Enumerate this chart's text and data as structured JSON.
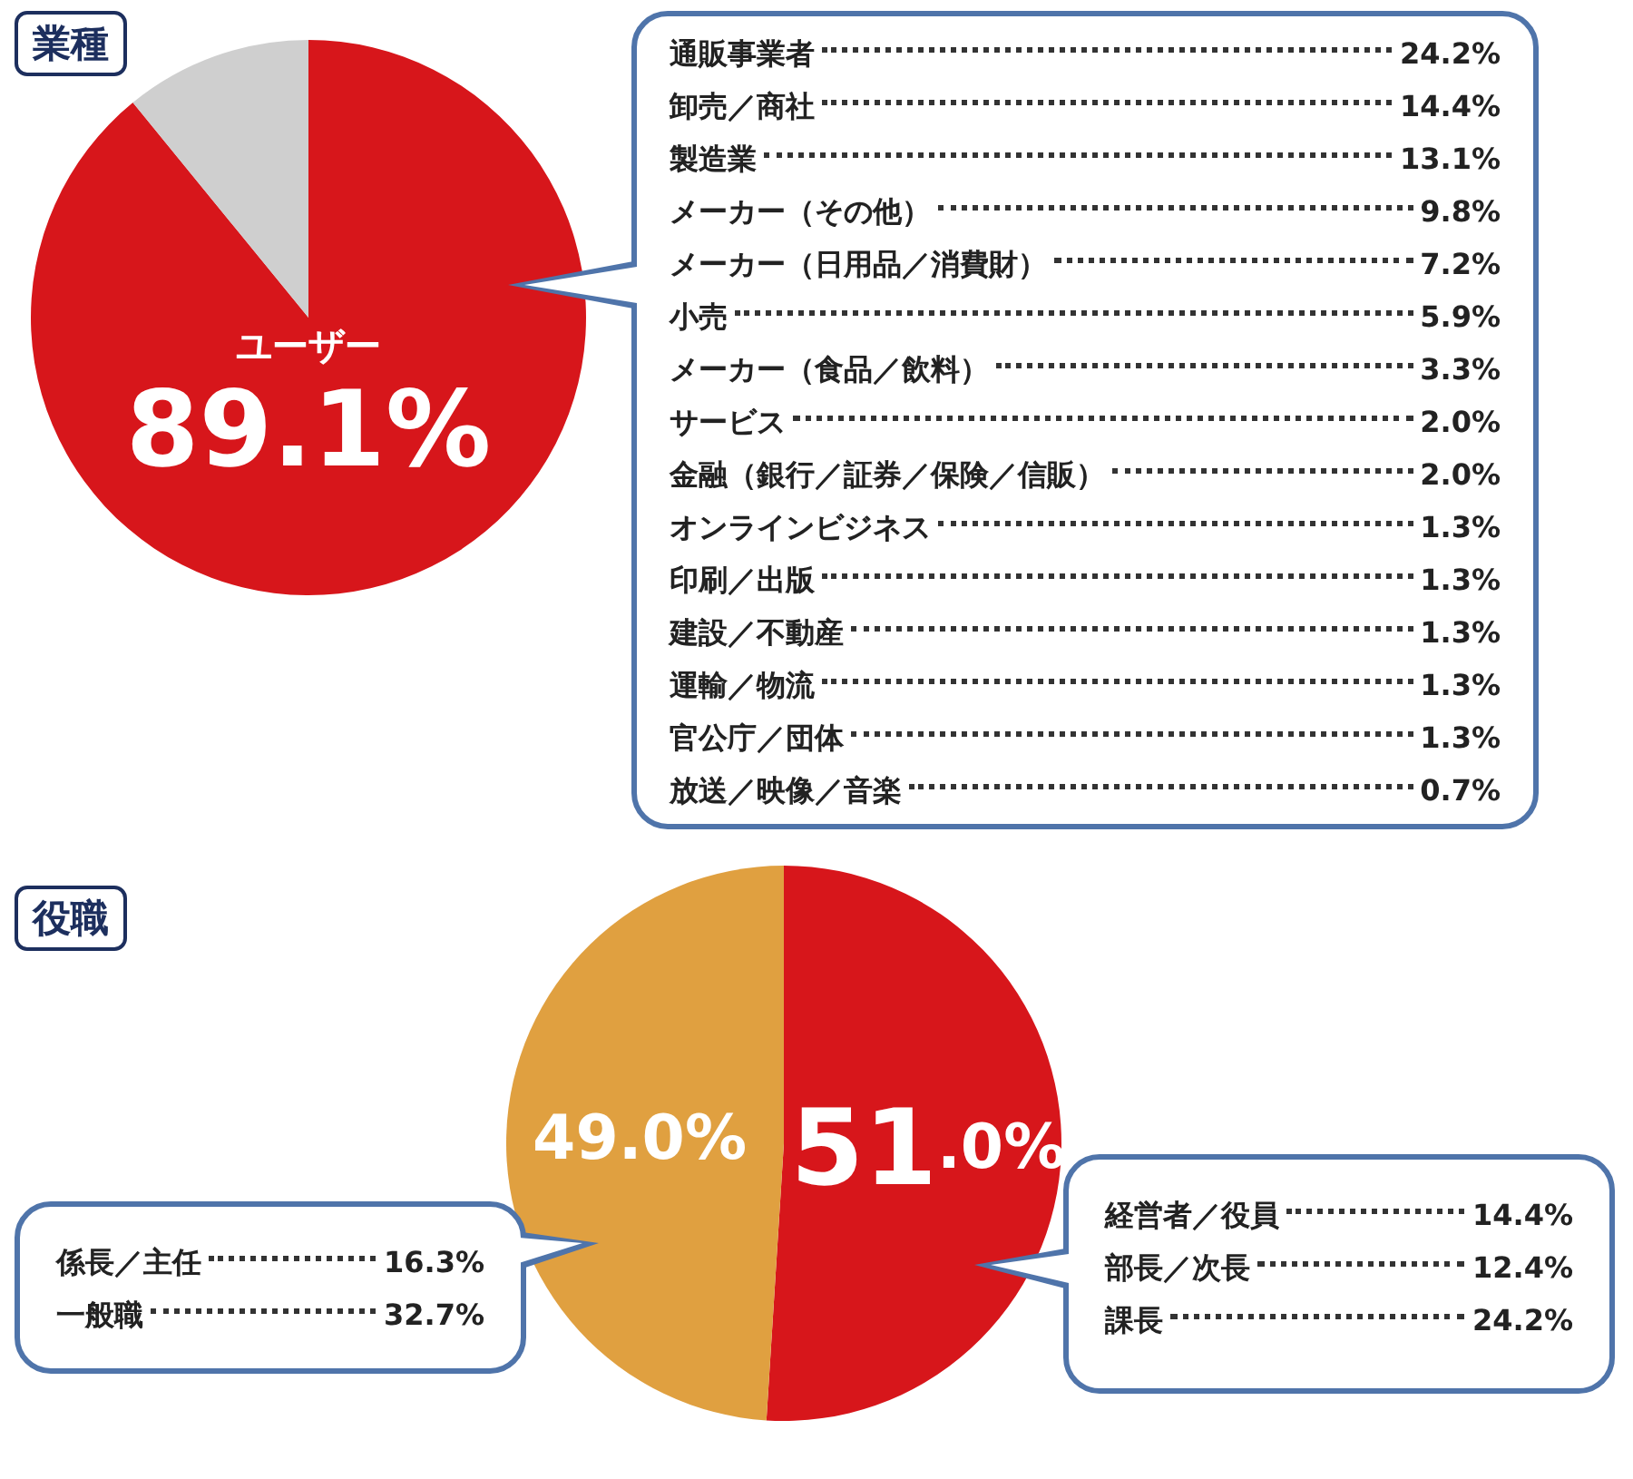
{
  "chart_data": [
    {
      "type": "pie",
      "title": "業種",
      "categories": [
        "ユーザー",
        null
      ],
      "values": [
        89.1,
        10.9
      ],
      "colors": [
        "#d7161b",
        "#cfcfcf"
      ],
      "value_labels": [
        "89.1%",
        null
      ],
      "annotations": [
        "通販事業者",
        "24.2%",
        "卸売／商社",
        "14.4%",
        "製造業",
        "13.1%",
        "メーカー（その他）",
        "9.8%",
        "メーカー（日用品／消費財）",
        "7.2%",
        "小売",
        "5.9%",
        "メーカー（食品／飲料）",
        "3.3%",
        "サービス",
        "2.0%",
        "金融（銀行／証券／保険／信販）",
        "2.0%",
        "オンラインビジネス",
        "1.3%",
        "印刷／出版",
        "1.3%",
        "建設／不動産",
        "1.3%",
        "運輸／物流",
        "1.3%",
        "官公庁／団体",
        "1.3%",
        "放送／映像／音楽",
        "0.7%"
      ]
    },
    {
      "type": "pie",
      "title": "役職",
      "categories": [
        null,
        null
      ],
      "values": [
        51.0,
        49.0
      ],
      "colors": [
        "#d7161b",
        "#e0a040"
      ],
      "value_labels": [
        "51.0%",
        "49.0%"
      ],
      "annotations": [
        "係長／主任",
        "16.3%",
        "一般職",
        "32.7%",
        "経営者／役員",
        "14.4%",
        "部長／次長",
        "12.4%",
        "課長",
        "24.2%"
      ]
    }
  ]
}
